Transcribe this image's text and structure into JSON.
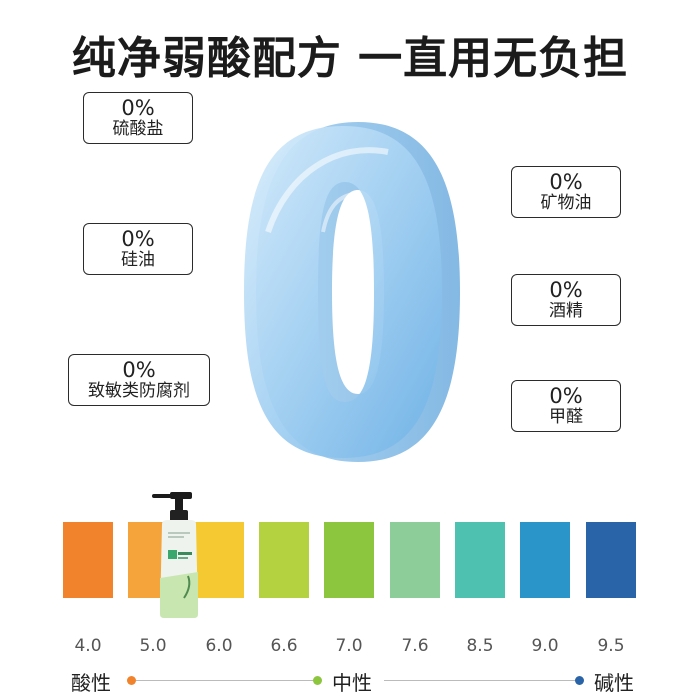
{
  "headline": "纯净弱酸配方 一直用无负担",
  "big_numeral": "0",
  "tags": [
    {
      "pct": "0%",
      "label": "硫酸盐"
    },
    {
      "pct": "0%",
      "label": "硅油"
    },
    {
      "pct": "0%",
      "label": "致敏类防腐剂"
    },
    {
      "pct": "0%",
      "label": "矿物油"
    },
    {
      "pct": "0%",
      "label": "酒精"
    },
    {
      "pct": "0%",
      "label": "甲醛"
    }
  ],
  "ph_scale": {
    "values": [
      "4.0",
      "5.0",
      "6.0",
      "6.6",
      "7.0",
      "7.6",
      "8.5",
      "9.0",
      "9.5"
    ],
    "colors": [
      "#f0832c",
      "#f4a43a",
      "#f5c931",
      "#b4d23f",
      "#8cc63f",
      "#8ccd9a",
      "#4fc1b0",
      "#2a95c8",
      "#2a64a8"
    ],
    "acidic_label": "酸性",
    "neutral_label": "中性",
    "alkaline_label": "碱性",
    "acidic_dot_color": "#f0832c",
    "neutral_dot_color": "#8cc63f",
    "alkaline_dot_color": "#2a64a8"
  },
  "product": {
    "icon": "pump-bottle-icon"
  }
}
